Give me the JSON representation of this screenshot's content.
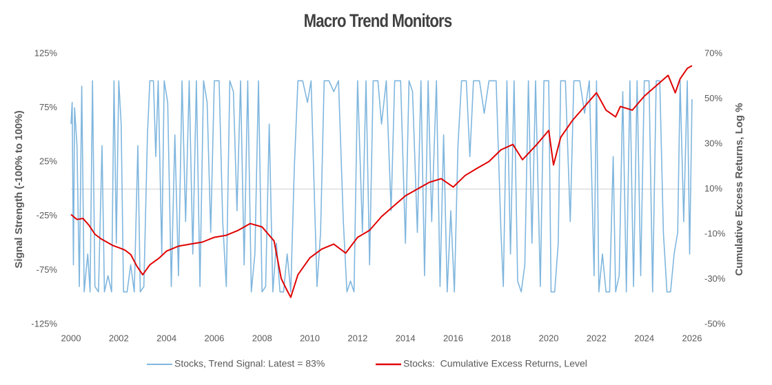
{
  "chart_data": {
    "type": "line",
    "title": "Macro Trend Monitors",
    "ylabel": "Signal Strength (-100% to 100%)",
    "y2label": "Cumulative Excess Returns, Log %",
    "xlim": [
      2000,
      2026
    ],
    "xticks": [
      2000,
      2002,
      2004,
      2006,
      2008,
      2010,
      2012,
      2014,
      2016,
      2018,
      2020,
      2022,
      2024,
      2026
    ],
    "ylim": [
      -125,
      125
    ],
    "yticks": [
      {
        "value": -125,
        "label": "-125%"
      },
      {
        "value": -75,
        "label": "-75%"
      },
      {
        "value": -25,
        "label": "-25%"
      },
      {
        "value": 25,
        "label": "25%"
      },
      {
        "value": 75,
        "label": "75%"
      },
      {
        "value": 125,
        "label": "125%"
      }
    ],
    "y2lim": [
      -50,
      70
    ],
    "y2ticks": [
      {
        "value": -50,
        "label": "-50%"
      },
      {
        "value": -30,
        "label": "-30%"
      },
      {
        "value": -10,
        "label": "-10%"
      },
      {
        "value": 10,
        "label": "10%"
      },
      {
        "value": 30,
        "label": "30%"
      },
      {
        "value": 50,
        "label": "50%"
      },
      {
        "value": 70,
        "label": "70%"
      }
    ],
    "legend": "bottom",
    "series": [
      {
        "name": "Stocks, Trend Signal: Latest = 83%",
        "color": "#7fb6de",
        "axis": "y",
        "x": [
          2000.0,
          2000.05,
          2000.1,
          2000.15,
          2000.25,
          2000.35,
          2000.45,
          2000.55,
          2000.7,
          2000.8,
          2000.9,
          2001.0,
          2001.15,
          2001.3,
          2001.4,
          2001.55,
          2001.7,
          2001.8,
          2001.9,
          2002.0,
          2002.1,
          2002.2,
          2002.35,
          2002.5,
          2002.65,
          2002.8,
          2002.9,
          2003.05,
          2003.2,
          2003.3,
          2003.45,
          2003.55,
          2003.65,
          2003.8,
          2003.9,
          2004.05,
          2004.2,
          2004.35,
          2004.5,
          2004.65,
          2004.8,
          2004.95,
          2005.1,
          2005.25,
          2005.4,
          2005.55,
          2005.7,
          2005.85,
          2006.0,
          2006.2,
          2006.35,
          2006.5,
          2006.65,
          2006.8,
          2006.95,
          2007.1,
          2007.25,
          2007.4,
          2007.55,
          2007.7,
          2007.85,
          2008.0,
          2008.15,
          2008.3,
          2008.45,
          2008.6,
          2008.75,
          2008.9,
          2009.05,
          2009.2,
          2009.35,
          2009.5,
          2009.7,
          2009.9,
          2010.05,
          2010.3,
          2010.45,
          2010.6,
          2010.8,
          2011.0,
          2011.2,
          2011.4,
          2011.55,
          2011.7,
          2011.85,
          2012.0,
          2012.2,
          2012.35,
          2012.5,
          2012.65,
          2012.85,
          2013.0,
          2013.2,
          2013.4,
          2013.55,
          2013.8,
          2014.0,
          2014.15,
          2014.3,
          2014.5,
          2014.65,
          2014.8,
          2014.95,
          2015.1,
          2015.3,
          2015.45,
          2015.6,
          2015.75,
          2015.9,
          2016.05,
          2016.2,
          2016.35,
          2016.55,
          2016.7,
          2016.85,
          2017.1,
          2017.3,
          2017.5,
          2017.8,
          2018.0,
          2018.1,
          2018.25,
          2018.4,
          2018.55,
          2018.7,
          2018.85,
          2019.0,
          2019.15,
          2019.3,
          2019.45,
          2019.65,
          2019.8,
          2020.0,
          2020.1,
          2020.25,
          2020.4,
          2020.5,
          2020.7,
          2020.9,
          2021.05,
          2021.3,
          2021.5,
          2021.7,
          2021.9,
          2022.0,
          2022.1,
          2022.25,
          2022.4,
          2022.55,
          2022.7,
          2022.8,
          2022.95,
          2023.1,
          2023.25,
          2023.4,
          2023.55,
          2023.7,
          2023.85,
          2024.0,
          2024.2,
          2024.35,
          2024.5,
          2024.65,
          2024.8,
          2024.95,
          2025.1,
          2025.25,
          2025.4,
          2025.5,
          2025.65,
          2025.8,
          2025.9,
          2026.0
        ],
        "values": [
          60,
          80,
          -70,
          75,
          40,
          -90,
          95,
          -95,
          -60,
          -95,
          100,
          -90,
          -95,
          40,
          -95,
          -80,
          -95,
          100,
          -50,
          100,
          60,
          -95,
          -95,
          -70,
          -95,
          40,
          -95,
          -90,
          50,
          100,
          100,
          30,
          100,
          -60,
          100,
          80,
          -90,
          50,
          -80,
          100,
          -30,
          100,
          -60,
          100,
          -90,
          100,
          80,
          -40,
          100,
          100,
          -30,
          -90,
          100,
          90,
          -20,
          100,
          -70,
          100,
          -95,
          -60,
          100,
          -95,
          -90,
          60,
          -95,
          -50,
          -95,
          -95,
          -60,
          -95,
          20,
          100,
          100,
          80,
          100,
          -90,
          -40,
          100,
          100,
          90,
          100,
          -30,
          -95,
          -85,
          -95,
          100,
          -40,
          100,
          -70,
          100,
          100,
          60,
          100,
          -20,
          100,
          100,
          -50,
          100,
          90,
          -40,
          100,
          -80,
          100,
          -30,
          100,
          -90,
          50,
          -95,
          -20,
          -95,
          40,
          100,
          100,
          30,
          100,
          100,
          70,
          100,
          100,
          -40,
          -90,
          100,
          -60,
          100,
          -85,
          -95,
          -70,
          100,
          -50,
          100,
          -90,
          100,
          100,
          -95,
          -95,
          -50,
          100,
          100,
          -30,
          100,
          100,
          70,
          100,
          -80,
          100,
          -95,
          -60,
          -95,
          -95,
          30,
          -95,
          -80,
          90,
          -95,
          100,
          -90,
          100,
          -80,
          100,
          100,
          -95,
          100,
          100,
          -40,
          -95,
          -95,
          -60,
          -40,
          100,
          -30,
          100,
          -60,
          83
        ]
      },
      {
        "name": "Stocks:  Cumulative Excess Returns, Level",
        "color": "#e00000",
        "axis": "y2",
        "x": [
          2000.0,
          2000.25,
          2000.5,
          2000.75,
          2001.0,
          2001.25,
          2001.5,
          2001.75,
          2002.0,
          2002.25,
          2002.5,
          2002.75,
          2003.0,
          2003.3,
          2003.7,
          2004.0,
          2004.5,
          2005.0,
          2005.5,
          2006.0,
          2006.5,
          2007.0,
          2007.5,
          2008.0,
          2008.5,
          2008.8,
          2009.0,
          2009.2,
          2009.5,
          2010.0,
          2010.5,
          2011.0,
          2011.5,
          2012.0,
          2012.5,
          2013.0,
          2013.5,
          2014.0,
          2014.5,
          2015.0,
          2015.5,
          2016.0,
          2016.5,
          2017.0,
          2017.5,
          2018.0,
          2018.5,
          2018.9,
          2019.5,
          2020.0,
          2020.2,
          2020.5,
          2021.0,
          2021.5,
          2022.0,
          2022.4,
          2022.8,
          2023.0,
          2023.5,
          2024.0,
          2024.5,
          2025.0,
          2025.3,
          2025.5,
          2025.8,
          2026.0
        ],
        "values": [
          -1.3,
          -3.5,
          -3,
          -6,
          -10,
          -12,
          -13.5,
          -15,
          -16,
          -17,
          -19,
          -24,
          -28,
          -23.6,
          -20.5,
          -17.5,
          -15.3,
          -14.4,
          -13.5,
          -11.4,
          -10.5,
          -8.3,
          -5.3,
          -6.8,
          -13,
          -29.7,
          -34,
          -38,
          -28,
          -20.5,
          -16.6,
          -14.4,
          -18.4,
          -11.4,
          -8.3,
          -2.2,
          2.4,
          7,
          10,
          13,
          14.6,
          10.9,
          16,
          19.2,
          22.2,
          27.4,
          29.8,
          23,
          29.8,
          36,
          20.7,
          32.9,
          40.5,
          46.6,
          52.7,
          45,
          42,
          46.6,
          45,
          51.2,
          55.8,
          60.4,
          52.7,
          58.9,
          63.5,
          64.7
        ]
      }
    ]
  }
}
